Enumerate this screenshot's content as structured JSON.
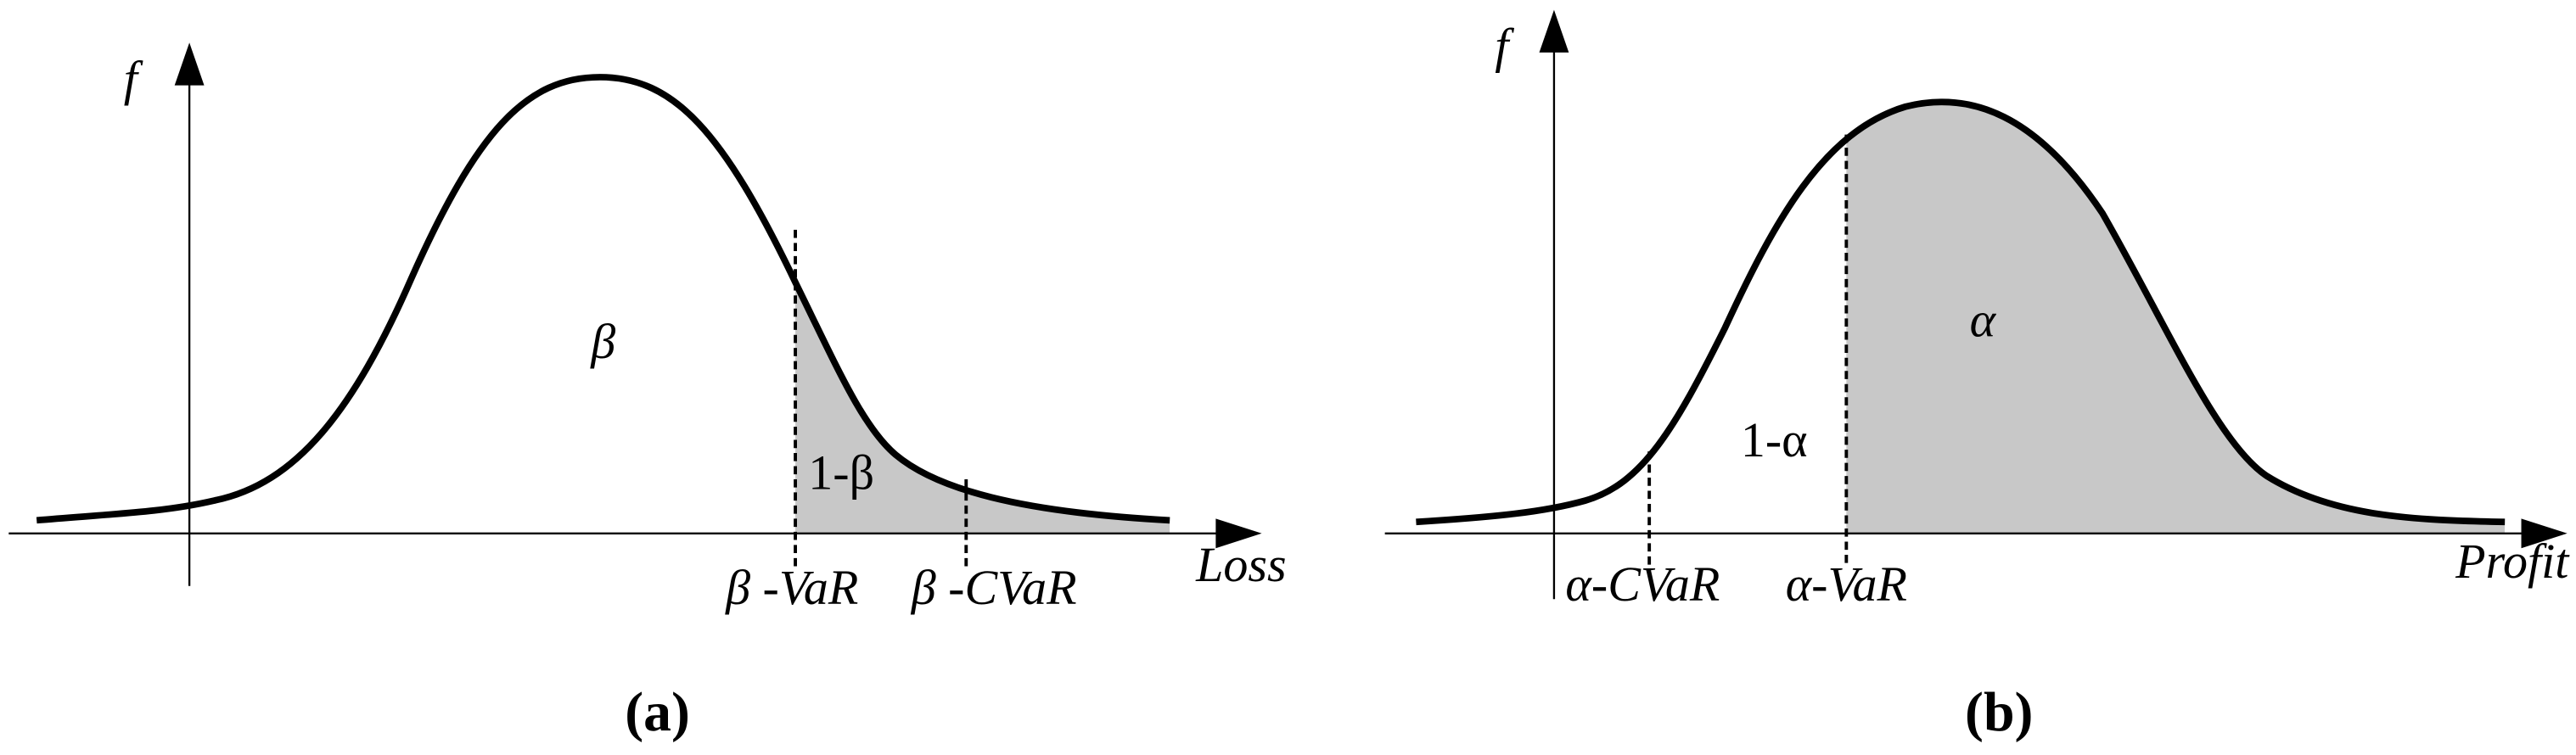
{
  "panels": [
    {
      "y_label": "f",
      "x_label": "Loss",
      "region_main": "β",
      "region_tail": "1-β",
      "markers": [
        "β -VaR",
        "β -CVaR"
      ],
      "caption": "(a)"
    },
    {
      "y_label": "f",
      "x_label": "Profit",
      "region_main": "α",
      "region_tail": "1-α",
      "markers": [
        "α-CVaR",
        "α-VaR"
      ],
      "caption": "(b)"
    }
  ]
}
